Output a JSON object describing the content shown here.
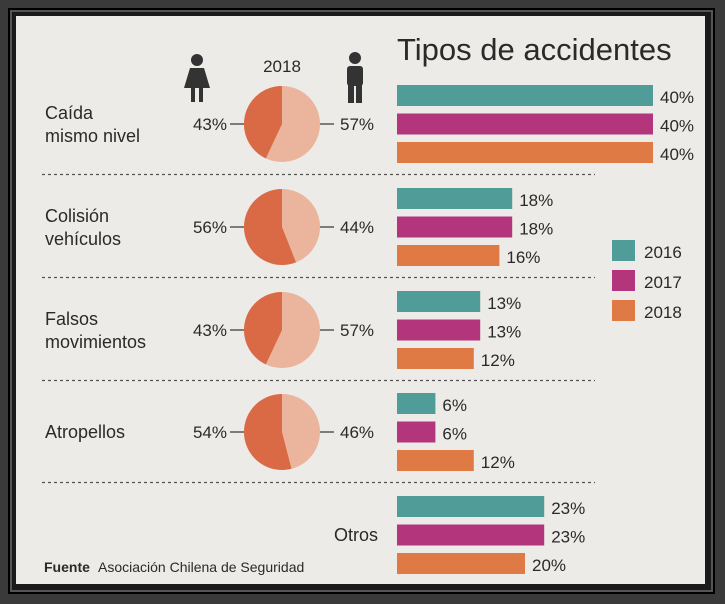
{
  "chart_data": {
    "type": "bar",
    "title": "Tipos de accidentes",
    "pie_year": "2018",
    "legend": [
      {
        "label": "2016",
        "color": "#4f9c98"
      },
      {
        "label": "2017",
        "color": "#b3357c"
      },
      {
        "label": "2018",
        "color": "#e07a45"
      }
    ],
    "gender_colors": {
      "women": "#d96a45",
      "men": "#ebb49c"
    },
    "categories": [
      {
        "label": [
          "Caída",
          "mismo nivel"
        ],
        "women": "43%",
        "men": "57%",
        "women_frac": 0.43,
        "values": [
          40,
          40,
          40
        ],
        "value_labels": [
          "40%",
          "40%",
          "40%"
        ]
      },
      {
        "label": [
          "Colisión",
          "vehículos"
        ],
        "women": "56%",
        "men": "44%",
        "women_frac": 0.56,
        "values": [
          18,
          18,
          16
        ],
        "value_labels": [
          "18%",
          "18%",
          "16%"
        ]
      },
      {
        "label": [
          "Falsos",
          "movimientos"
        ],
        "women": "43%",
        "men": "57%",
        "women_frac": 0.43,
        "values": [
          13,
          13,
          12
        ],
        "value_labels": [
          "13%",
          "13%",
          "12%"
        ]
      },
      {
        "label": [
          "Atropellos"
        ],
        "women": "54%",
        "men": "46%",
        "women_frac": 0.54,
        "values": [
          6,
          6,
          12
        ],
        "value_labels": [
          "6%",
          "6%",
          "12%"
        ]
      },
      {
        "label": [
          "Otros"
        ],
        "values": [
          23,
          23,
          20
        ],
        "value_labels": [
          "23%",
          "23%",
          "20%"
        ]
      }
    ],
    "source_label": "Fuente",
    "source": "Asociación Chilena de Seguridad"
  }
}
